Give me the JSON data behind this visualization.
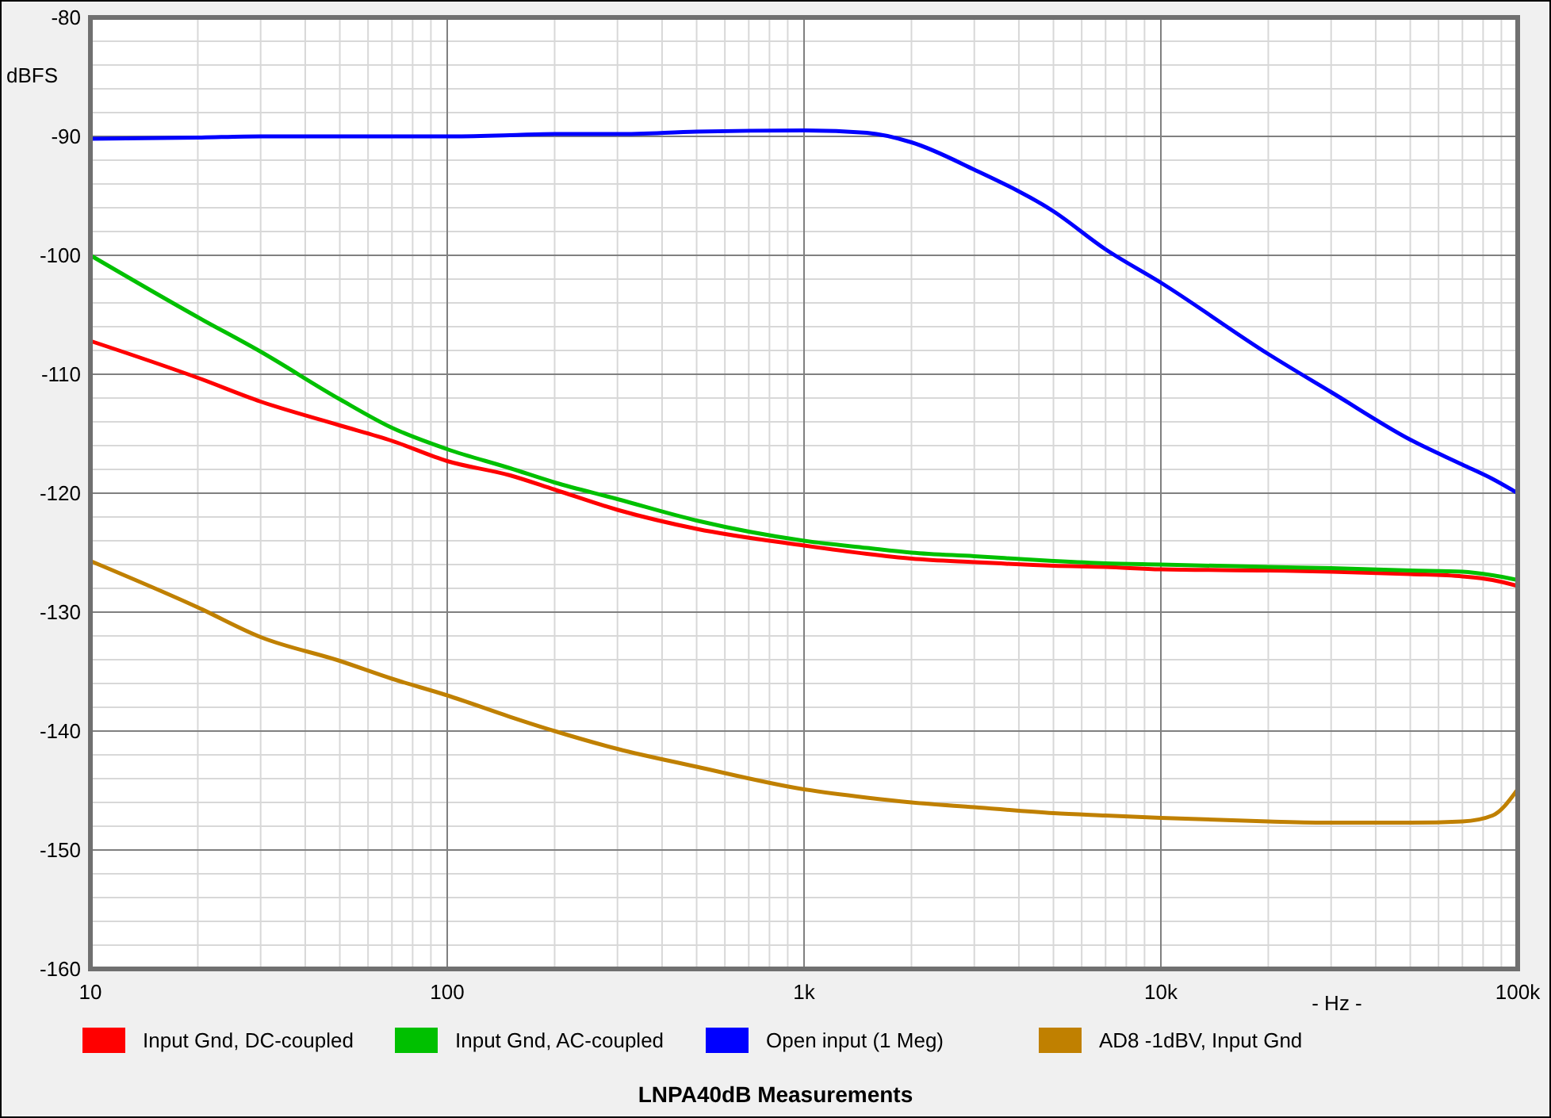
{
  "chart_data": {
    "type": "line",
    "title": "LNPA40dB Measurements",
    "xlabel": "- Hz -",
    "ylabel": "dBFS",
    "log": "x",
    "grid": true,
    "legend": "bottom",
    "marker": "none",
    "line_style": "solid",
    "xlim": [
      10,
      100000
    ],
    "ylim": [
      -160,
      -80
    ],
    "xticks": [
      10,
      100,
      {
        "value": 1000,
        "label": "1k"
      },
      {
        "value": 10000,
        "label": "10k"
      },
      {
        "value": 100000,
        "label": "100k"
      }
    ],
    "yticks": [
      -80,
      -90,
      -100,
      -110,
      -120,
      -130,
      -140,
      -150,
      -160
    ],
    "x": [
      10,
      20,
      30,
      50,
      70,
      100,
      150,
      200,
      300,
      500,
      1000,
      1500,
      2000,
      3000,
      5000,
      7000,
      10000,
      20000,
      30000,
      50000,
      70000,
      85000,
      100000
    ],
    "series": [
      {
        "name": "Input Gnd, DC-coupled",
        "color": "#ff0000",
        "values": [
          -107.2,
          -110.3,
          -112.3,
          -114.3,
          -115.6,
          -117.3,
          -118.5,
          -119.7,
          -121.4,
          -123,
          -124.4,
          -125.1,
          -125.5,
          -125.8,
          -126.1,
          -126.2,
          -126.4,
          -126.5,
          -126.6,
          -126.8,
          -127,
          -127.3,
          -127.8
        ]
      },
      {
        "name": "Input Gnd, AC-coupled",
        "color": "#00c000",
        "values": [
          -100,
          -105.2,
          -108.1,
          -112.1,
          -114.5,
          -116.3,
          -117.9,
          -119.1,
          -120.5,
          -122.3,
          -124,
          -124.6,
          -125,
          -125.3,
          -125.7,
          -125.9,
          -126,
          -126.2,
          -126.3,
          -126.5,
          -126.6,
          -126.9,
          -127.3
        ]
      },
      {
        "name": "Open input (1 Meg)",
        "color": "#0000ff",
        "values": [
          -90.2,
          -90.1,
          -90,
          -90,
          -90,
          -90,
          -89.9,
          -89.8,
          -89.8,
          -89.6,
          -89.5,
          -89.7,
          -90.5,
          -92.8,
          -96.3,
          -99.5,
          -102.3,
          -108.3,
          -111.5,
          -115.5,
          -117.6,
          -118.8,
          -120
        ]
      },
      {
        "name": "AD8 -1dBV, Input Gnd",
        "color": "#c08000",
        "values": [
          -125.7,
          -129.6,
          -132.1,
          -134.1,
          -135.6,
          -137,
          -138.8,
          -140,
          -141.5,
          -143,
          -144.9,
          -145.6,
          -146,
          -146.4,
          -146.9,
          -147.1,
          -147.3,
          -147.6,
          -147.7,
          -147.7,
          -147.6,
          -147.1,
          -144.9
        ]
      }
    ]
  }
}
